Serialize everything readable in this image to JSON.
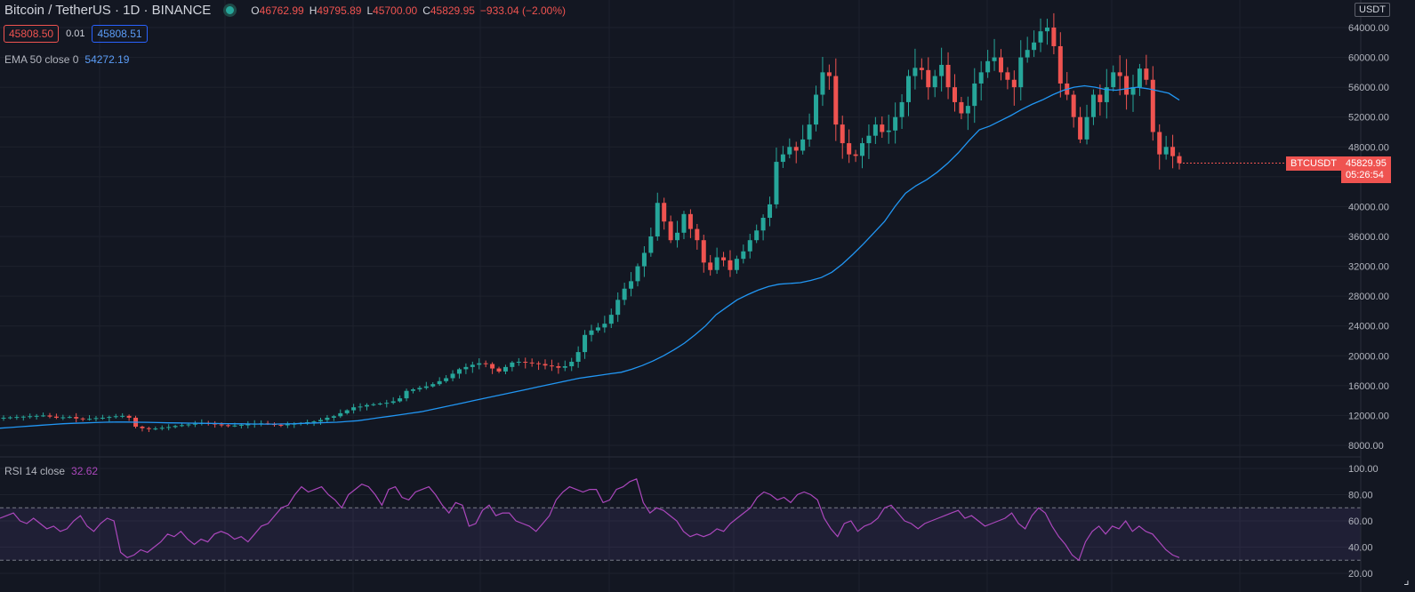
{
  "header": {
    "title": "Bitcoin / TetherUS · 1D · BINANCE",
    "status_color": "#26a69a",
    "ohlc": [
      {
        "k": "O",
        "v": "46762.99"
      },
      {
        "k": "H",
        "v": "49795.89"
      },
      {
        "k": "L",
        "v": "45700.00"
      },
      {
        "k": "C",
        "v": "45829.95"
      },
      {
        "k": "",
        "v": "−933.04 (−2.00%)"
      }
    ]
  },
  "trade": {
    "sell": "45808.50",
    "spread": "0.01",
    "buy": "45808.51"
  },
  "indicators": {
    "ema": {
      "label": "EMA 50 close 0",
      "value": "54272.19",
      "color": "#2196f3"
    },
    "rsi": {
      "label": "RSI 14 close",
      "value": "32.62",
      "color": "#ab47bc"
    }
  },
  "price_axis": {
    "currency": "USDT",
    "symbol_tag": "BTCUSDT",
    "last_price": "45829.95",
    "countdown": "05:26:54"
  },
  "colors": {
    "up": "#26a69a",
    "down": "#ef5350",
    "background": "#131722"
  },
  "chart_data": [
    {
      "type": "candlestick",
      "ylim": [
        6000,
        66000
      ],
      "yticks": [
        "8000.00",
        "12000.00",
        "16000.00",
        "20000.00",
        "24000.00",
        "28000.00",
        "32000.00",
        "36000.00",
        "40000.00",
        "44000.00",
        "48000.00",
        "52000.00",
        "56000.00",
        "60000.00",
        "64000.00"
      ],
      "close_series": [
        11700,
        11750,
        11800,
        11850,
        11900,
        11950,
        12000,
        11850,
        11700,
        11750,
        11800,
        11600,
        11500,
        11550,
        11650,
        11700,
        11800,
        11900,
        11950,
        11700,
        10500,
        10300,
        10200,
        10250,
        10350,
        10450,
        10600,
        10700,
        10800,
        10900,
        11000,
        10950,
        10800,
        10700,
        10600,
        10650,
        10750,
        10800,
        10900,
        10950,
        10850,
        10750,
        10700,
        10800,
        10900,
        11000,
        11100,
        11200,
        11400,
        11700,
        11900,
        12300,
        12700,
        13100,
        13200,
        13400,
        13500,
        13600,
        13700,
        13900,
        14300,
        15300,
        15500,
        15700,
        15900,
        16200,
        16600,
        17000,
        17600,
        18200,
        18500,
        18800,
        19000,
        18900,
        18300,
        17900,
        18500,
        19100,
        19200,
        19100,
        19000,
        18900,
        18700,
        18600,
        18400,
        18600,
        19200,
        20500,
        22800,
        23400,
        23800,
        24300,
        25500,
        27500,
        29000,
        30000,
        32000,
        33800,
        36000,
        40500,
        38000,
        35500,
        36500,
        39000,
        37000,
        35500,
        32500,
        31500,
        33200,
        32800,
        31500,
        33000,
        34000,
        35500,
        36800,
        38500,
        40300,
        46000,
        47000,
        48000,
        47500,
        49000,
        51000,
        55000,
        58000,
        57500,
        51000,
        48500,
        47000,
        46800,
        48500,
        49500,
        51000,
        50000,
        50200,
        52000,
        54000,
        57500,
        58600,
        58300,
        56000,
        57500,
        59000,
        56000,
        54000,
        52500,
        53500,
        56500,
        58000,
        59500,
        60000,
        58000,
        57000,
        56000,
        60000,
        61000,
        62000,
        63500,
        64000,
        61500,
        56500,
        55000,
        52000,
        49000,
        52000,
        55000,
        54000,
        56000,
        58000,
        57500,
        55000,
        56000,
        58500,
        57000,
        50000,
        47000,
        48000,
        46763,
        45830
      ],
      "ema50": [
        10300,
        10400,
        10500,
        10600,
        10700,
        10800,
        10900,
        10950,
        11000,
        11050,
        11100,
        11120,
        11120,
        11100,
        11080,
        11050,
        11020,
        11000,
        10980,
        10960,
        10940,
        10920,
        10900,
        10880,
        10860,
        10850,
        10850,
        10870,
        10900,
        10950,
        11000,
        11050,
        11100,
        11200,
        11300,
        11500,
        11700,
        11900,
        12100,
        12300,
        12500,
        12800,
        13100,
        13400,
        13700,
        14000,
        14300,
        14600,
        14900,
        15200,
        15500,
        15800,
        16100,
        16400,
        16700,
        17000,
        17200,
        17400,
        17600,
        17800,
        18200,
        18700,
        19300,
        20000,
        20800,
        21700,
        22800,
        24000,
        25500,
        26500,
        27500,
        28200,
        28800,
        29300,
        29600,
        29700,
        29800,
        30100,
        30500,
        31200,
        32300,
        33600,
        35000,
        36500,
        38000,
        40000,
        41800,
        42800,
        43600,
        44600,
        45800,
        47200,
        48800,
        50300,
        50800,
        51500,
        52200,
        53000,
        53700,
        54300,
        55000,
        55600,
        56000,
        56200,
        56000,
        55700,
        55600,
        55800,
        56000,
        55800,
        55500,
        55200,
        54272
      ],
      "ema_start_index": 0
    },
    {
      "type": "line",
      "ylim": [
        20,
        100
      ],
      "yticks": [
        "20.00",
        "40.00",
        "60.00",
        "80.00",
        "100.00"
      ],
      "bands": [
        30,
        70
      ],
      "rsi": [
        62,
        64,
        66,
        60,
        58,
        62,
        58,
        54,
        56,
        52,
        54,
        60,
        64,
        56,
        52,
        58,
        62,
        60,
        36,
        32,
        34,
        38,
        36,
        40,
        44,
        50,
        48,
        52,
        46,
        42,
        46,
        44,
        50,
        52,
        50,
        46,
        48,
        44,
        50,
        56,
        58,
        64,
        70,
        72,
        80,
        86,
        82,
        84,
        86,
        80,
        76,
        70,
        80,
        84,
        88,
        86,
        80,
        72,
        84,
        86,
        78,
        76,
        82,
        84,
        86,
        80,
        72,
        66,
        74,
        72,
        56,
        58,
        68,
        72,
        64,
        66,
        66,
        60,
        58,
        56,
        52,
        58,
        64,
        76,
        82,
        86,
        84,
        82,
        84,
        84,
        74,
        76,
        84,
        86,
        90,
        92,
        74,
        66,
        70,
        68,
        64,
        60,
        52,
        48,
        50,
        48,
        50,
        54,
        52,
        58,
        62,
        66,
        70,
        78,
        82,
        80,
        76,
        78,
        74,
        80,
        82,
        80,
        76,
        62,
        54,
        48,
        58,
        60,
        52,
        56,
        58,
        62,
        70,
        72,
        66,
        60,
        58,
        54,
        58,
        60,
        62,
        64,
        66,
        68,
        62,
        64,
        60,
        56,
        58,
        60,
        62,
        66,
        58,
        54,
        64,
        70,
        66,
        56,
        48,
        42,
        34,
        30,
        44,
        52,
        56,
        50,
        56,
        54,
        60,
        52,
        56,
        52,
        50,
        44,
        38,
        34,
        32
      ]
    }
  ]
}
